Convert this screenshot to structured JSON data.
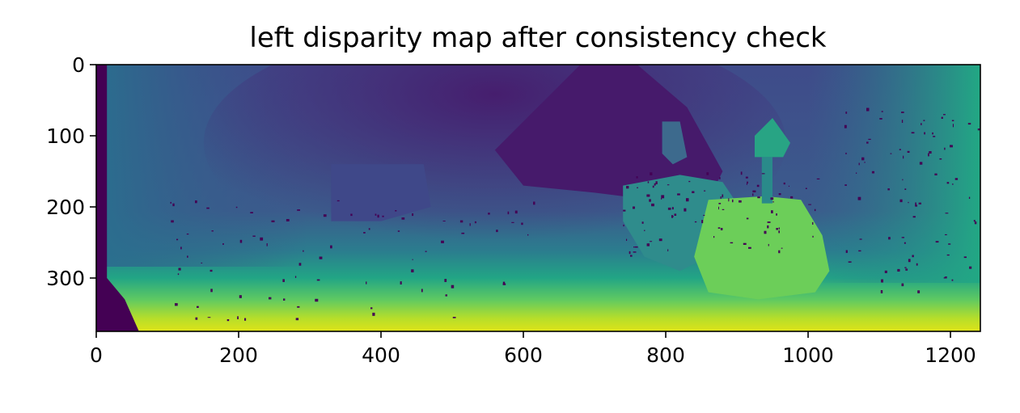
{
  "chart_data": {
    "type": "heatmap",
    "title": "left disparity map after consistency check",
    "xlabel": "",
    "ylabel": "",
    "colormap": "viridis",
    "image_size": [
      1242,
      375
    ],
    "xlim": [
      0,
      1242
    ],
    "ylim": [
      375,
      0
    ],
    "x_ticks": [
      0,
      200,
      400,
      600,
      800,
      1000,
      1200
    ],
    "x_tick_labels": [
      "0",
      "200",
      "400",
      "600",
      "800",
      "1000",
      "1200"
    ],
    "y_ticks": [
      0,
      100,
      200,
      300
    ],
    "y_tick_labels": [
      "0",
      "100",
      "200",
      "300"
    ],
    "grid": false,
    "colors": {
      "invalid": "#440154",
      "far": "#3b528b",
      "mid": "#21918c",
      "near": "#5ec962",
      "nearest": "#fde725"
    }
  }
}
